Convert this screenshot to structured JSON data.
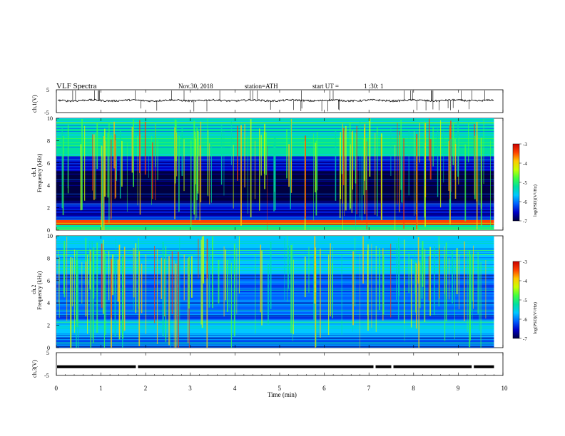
{
  "header": {
    "title": "VLF Spectra",
    "date": "Nov.30, 2018",
    "station": "station=ATH",
    "start_label": "start  UT  =",
    "start_time": "1 :30: 1"
  },
  "panels": {
    "ch1": {
      "ylabel": "ch.1(V)",
      "ticks": [
        "5",
        "-5"
      ]
    },
    "spec1": {
      "ylabel_top": "ch.1",
      "ylabel": "Frequency (kHz)",
      "ticks": [
        "10",
        "8",
        "6",
        "4",
        "2",
        "0"
      ]
    },
    "spec2": {
      "ylabel_top": "ch.2",
      "ylabel": "Frequency (kHz)",
      "ticks": [
        "10",
        "8",
        "6",
        "4",
        "2",
        "0"
      ]
    },
    "ch3": {
      "ylabel": "ch.3(V)",
      "ticks": [
        "5",
        "-5"
      ]
    }
  },
  "colorbar": {
    "label": "log(PSD)(V²/Hz)",
    "ticks": [
      "-3",
      "-4",
      "-5",
      "-6",
      "-7"
    ],
    "colors": [
      "#000040",
      "#0000c8",
      "#0060ff",
      "#00c8ff",
      "#00e0a0",
      "#40ff40",
      "#c8ff00",
      "#ffc800",
      "#ff4000",
      "#c80000",
      "#ffffff"
    ]
  },
  "chart_data": {
    "type": "heatmap",
    "xlabel": "Time (min)",
    "x_ticks": [
      "0",
      "1",
      "2",
      "3",
      "4",
      "5",
      "6",
      "7",
      "8",
      "9",
      "10"
    ],
    "xlim": [
      0,
      10
    ],
    "data_end_min": 9.8,
    "spectrogram_ylim_khz": [
      0,
      10
    ],
    "colorbar_range_log_psd": [
      -7,
      -3
    ],
    "spectra": [
      {
        "name": "ch.1",
        "bands_khz": [
          {
            "from": 0,
            "to": 0.5,
            "log_psd": -5.2
          },
          {
            "from": 0.5,
            "to": 0.9,
            "log_psd": -3.8
          },
          {
            "from": 0.9,
            "to": 2.4,
            "log_psd": -6.3
          },
          {
            "from": 2.4,
            "to": 5.3,
            "log_psd": -6.8
          },
          {
            "from": 5.3,
            "to": 6.6,
            "log_psd": -6.2
          },
          {
            "from": 6.6,
            "to": 10,
            "log_psd": -5.3
          }
        ]
      },
      {
        "name": "ch.2",
        "bands_khz": [
          {
            "from": 0,
            "to": 1.0,
            "log_psd": -6.0
          },
          {
            "from": 1.0,
            "to": 2.4,
            "log_psd": -5.5
          },
          {
            "from": 2.4,
            "to": 5.3,
            "log_psd": -6.0
          },
          {
            "from": 5.3,
            "to": 6.6,
            "log_psd": -6.1
          },
          {
            "from": 6.6,
            "to": 10,
            "log_psd": -5.6
          }
        ]
      }
    ],
    "ch1_waveform_v": {
      "ylim": [
        -5,
        5
      ],
      "mean": 0.3,
      "amplitude": 0.4
    },
    "ch3_signal_v": {
      "ylim": [
        -5,
        5
      ],
      "level": -1.2,
      "dropouts_min": [
        1.78,
        7.1,
        7.5,
        9.3
      ]
    }
  }
}
